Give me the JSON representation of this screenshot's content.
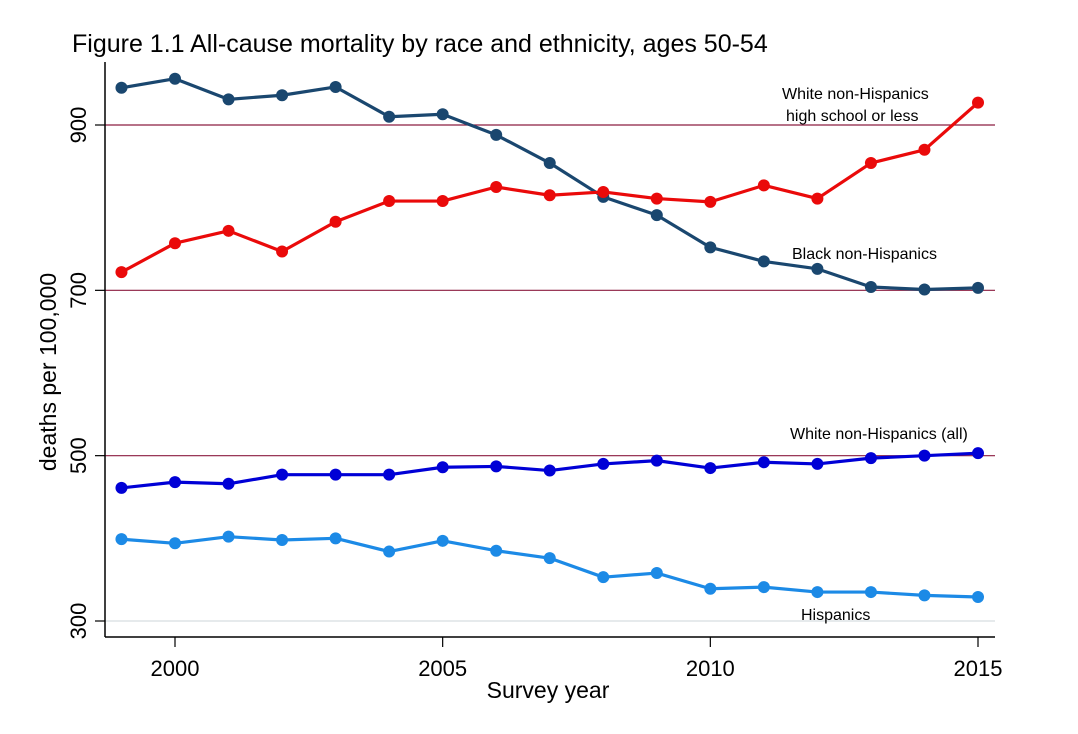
{
  "chart_data": {
    "type": "line",
    "title": "Figure 1.1 All-cause mortality by race and ethnicity, ages 50-54",
    "xlabel": "Survey year",
    "ylabel": "deaths per 100,000",
    "xlim": [
      1999,
      2015
    ],
    "ylim": [
      300,
      960
    ],
    "x_ticks": [
      2000,
      2005,
      2010,
      2015
    ],
    "x_tick_labels": [
      "2000",
      "2005",
      "2010",
      "2015"
    ],
    "y_ticks": [
      300,
      500,
      700,
      900
    ],
    "y_tick_labels": [
      "300",
      "500",
      "700",
      "900"
    ],
    "reference_lines": [
      {
        "y": 900,
        "color": "#8c1d40"
      },
      {
        "y": 700,
        "color": "#8c1d40"
      },
      {
        "y": 500,
        "color": "#8c1d40"
      },
      {
        "y": 300,
        "color": "#e6eaec"
      }
    ],
    "grid": false,
    "legend": "none",
    "x": [
      1999,
      2000,
      2001,
      2002,
      2003,
      2004,
      2005,
      2006,
      2007,
      2008,
      2009,
      2010,
      2011,
      2012,
      2013,
      2014,
      2015
    ],
    "series": [
      {
        "name": "Black non-Hispanics",
        "color": "#1a476f",
        "values": [
          945,
          956,
          931,
          936,
          946,
          910,
          913,
          888,
          854,
          813,
          791,
          752,
          735,
          726,
          704,
          701,
          703
        ]
      },
      {
        "name": "White non-Hispanics high school or less",
        "color": "#ea0a0a",
        "values": [
          722,
          757,
          772,
          747,
          783,
          808,
          808,
          825,
          815,
          819,
          811,
          807,
          827,
          811,
          854,
          870,
          927
        ]
      },
      {
        "name": "White non-Hispanics (all)",
        "color": "#0000d6",
        "values": [
          461,
          468,
          466,
          477,
          477,
          477,
          486,
          487,
          482,
          490,
          494,
          485,
          492,
          490,
          497,
          500,
          503
        ]
      },
      {
        "name": "Hispanics",
        "color": "#1c8ae6",
        "values": [
          399,
          394,
          402,
          398,
          400,
          384,
          397,
          385,
          376,
          353,
          358,
          339,
          341,
          335,
          335,
          331,
          329
        ]
      }
    ],
    "annotations": [
      {
        "text": "White non-Hispanics",
        "series": "White non-Hispanics high school or less"
      },
      {
        "text": "high school or less",
        "series": "White non-Hispanics high school or less"
      },
      {
        "text": "Black non-Hispanics",
        "series": "Black non-Hispanics"
      },
      {
        "text": "White non-Hispanics (all)",
        "series": "White non-Hispanics (all)"
      },
      {
        "text": "Hispanics",
        "series": "Hispanics"
      }
    ]
  }
}
